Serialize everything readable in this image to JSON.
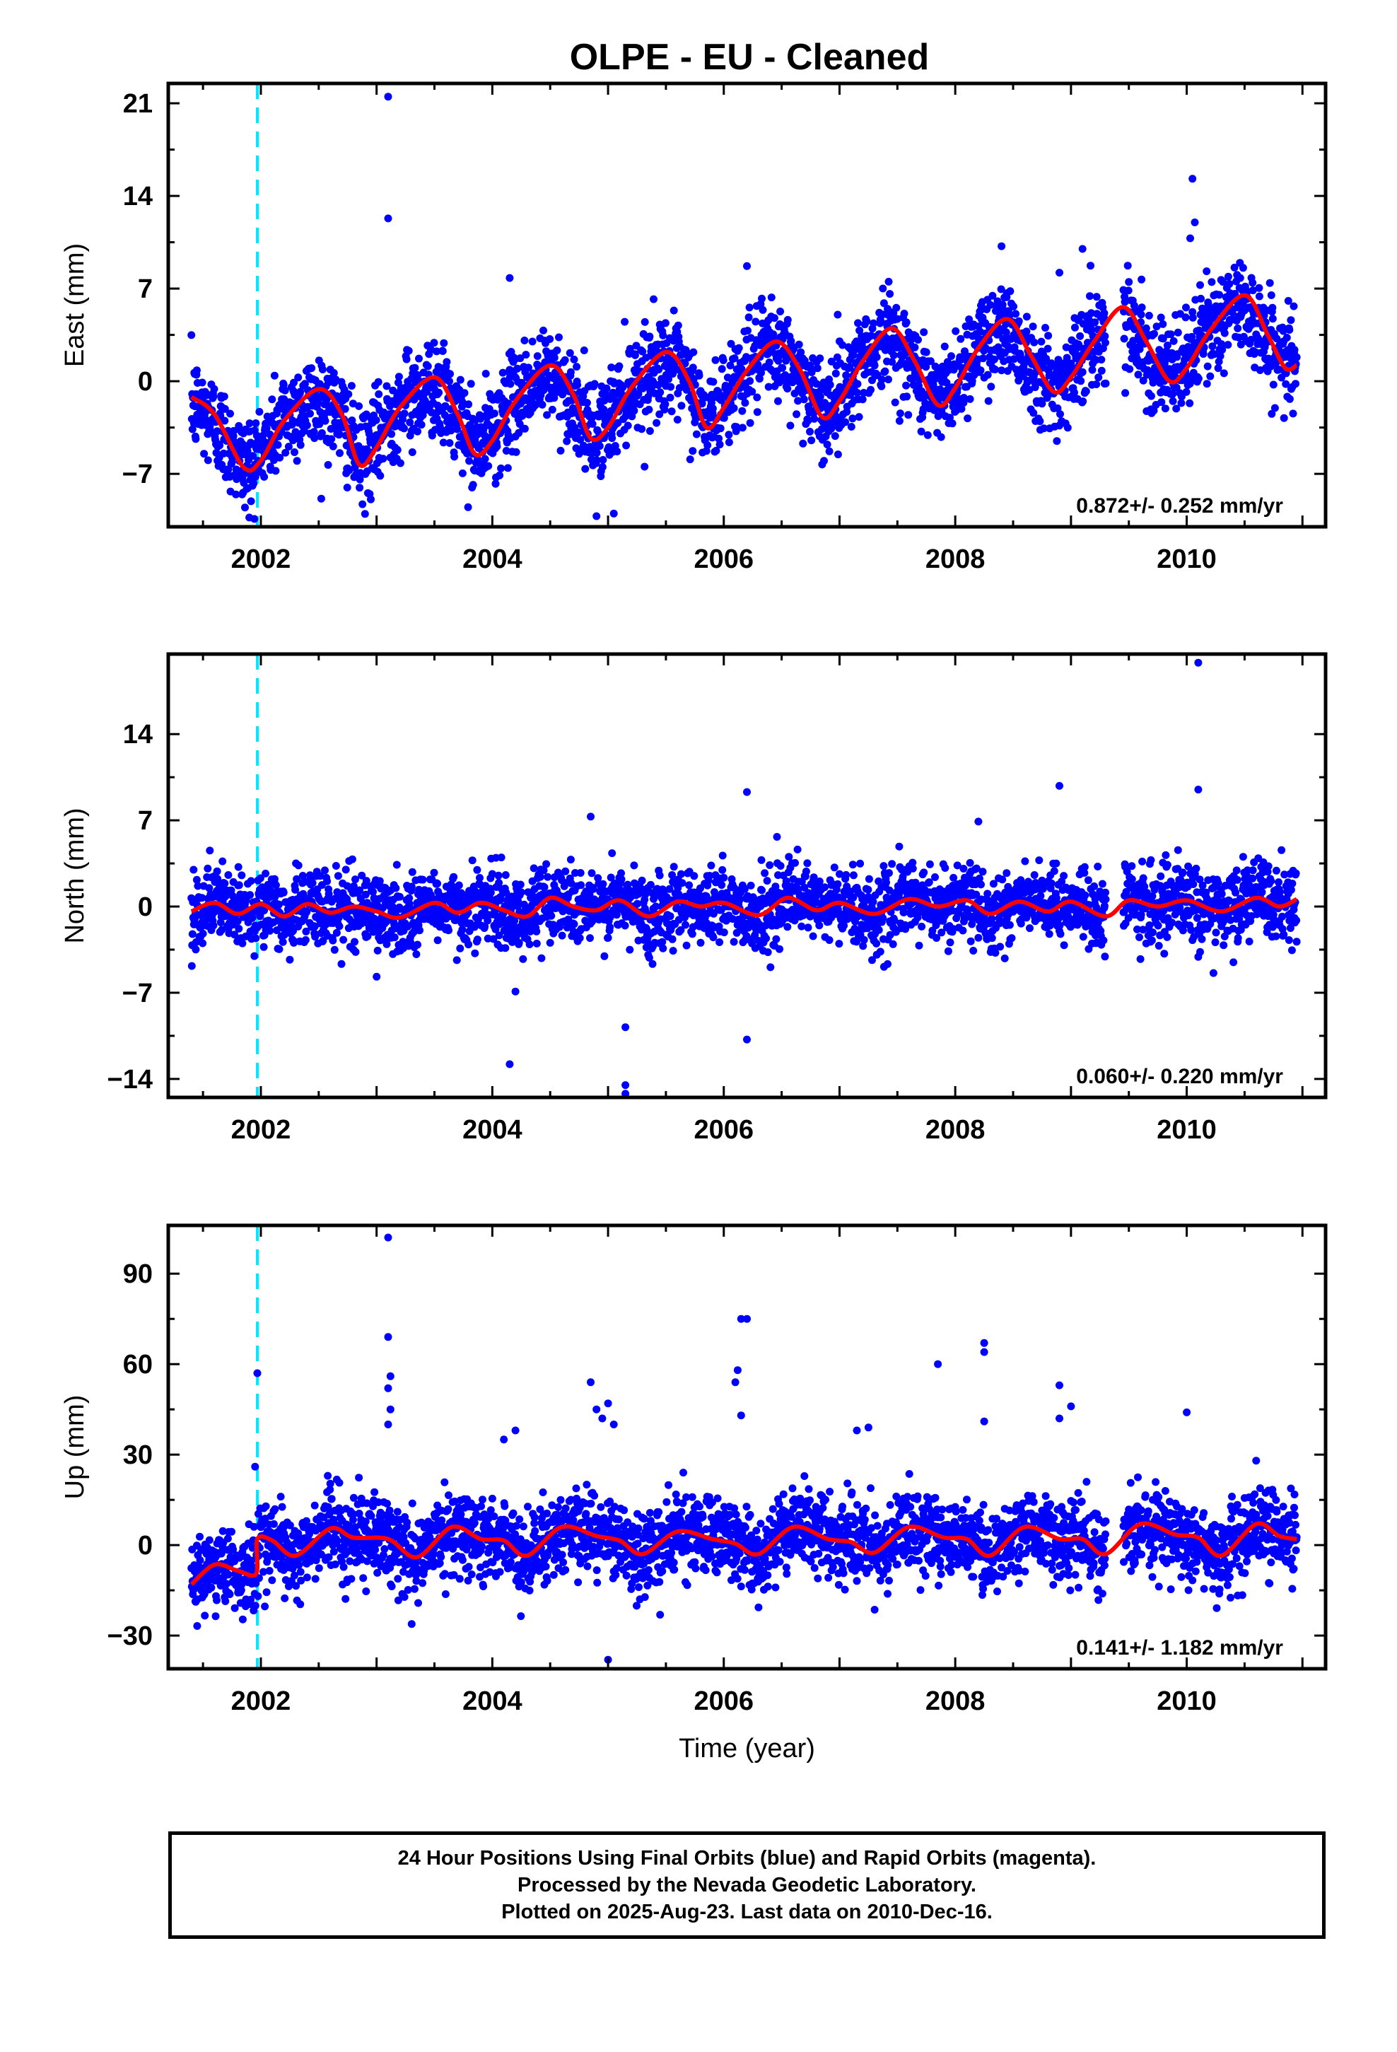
{
  "chart_data": {
    "type": "scatter",
    "title": "OLPE  - EU - Cleaned",
    "x_label": "Time (year)",
    "x_ticks": [
      2002,
      2004,
      2006,
      2008,
      2010
    ],
    "x_range": [
      2001.2,
      2011.2
    ],
    "event_line_x": 2001.97,
    "colors": {
      "final_orbits": "#0000ff",
      "fit": "#ff0000",
      "event_line": "#00e5ff"
    },
    "panels": [
      {
        "name": "East",
        "y_label": "East (mm)",
        "y_range": [
          -11,
          22.5
        ],
        "y_ticks": [
          21,
          14,
          7,
          0,
          -7
        ],
        "y_tick_labels": [
          "21",
          "14",
          "7",
          "0",
          "−7"
        ],
        "rate": "0.872+/- 0.252 mm/yr",
        "rate_mm_yr": 0.872,
        "trend_offset": -2.5,
        "annual_amplitude": 3.5,
        "annual_phase": 0.2,
        "noise": 1.8,
        "outliers": [
          [
            2003.1,
            21.5
          ],
          [
            2003.1,
            12.3
          ],
          [
            2004.15,
            7.8
          ],
          [
            2006.2,
            8.7
          ],
          [
            2008.4,
            10.2
          ],
          [
            2008.9,
            8.2
          ],
          [
            2009.1,
            10.0
          ],
          [
            2010.05,
            15.3
          ],
          [
            2010.07,
            12.0
          ],
          [
            2010.03,
            10.8
          ],
          [
            2001.9,
            -10.3
          ],
          [
            2004.9,
            -10.2
          ],
          [
            2005.05,
            -10.0
          ]
        ],
        "fit_points": [
          [
            2001.4,
            -1.2
          ],
          [
            2001.6,
            -2.5
          ],
          [
            2001.85,
            -6.5
          ],
          [
            2002.0,
            -6.0
          ],
          [
            2002.2,
            -3.0
          ],
          [
            2002.5,
            -0.6
          ],
          [
            2002.7,
            -2.5
          ],
          [
            2002.85,
            -6.3
          ],
          [
            2003.0,
            -5.0
          ],
          [
            2003.2,
            -2.0
          ],
          [
            2003.5,
            0.3
          ],
          [
            2003.7,
            -2.5
          ],
          [
            2003.85,
            -5.5
          ],
          [
            2004.0,
            -4.5
          ],
          [
            2004.2,
            -1.5
          ],
          [
            2004.5,
            1.2
          ],
          [
            2004.7,
            -1.0
          ],
          [
            2004.85,
            -4.3
          ],
          [
            2005.0,
            -3.5
          ],
          [
            2005.2,
            -0.5
          ],
          [
            2005.5,
            2.2
          ],
          [
            2005.7,
            0.0
          ],
          [
            2005.85,
            -3.5
          ],
          [
            2006.0,
            -2.0
          ],
          [
            2006.2,
            0.8
          ],
          [
            2006.45,
            3.0
          ],
          [
            2006.65,
            1.0
          ],
          [
            2006.85,
            -2.7
          ],
          [
            2007.0,
            -1.5
          ],
          [
            2007.2,
            1.5
          ],
          [
            2007.45,
            4.0
          ],
          [
            2007.65,
            1.5
          ],
          [
            2007.85,
            -1.8
          ],
          [
            2008.0,
            -0.5
          ],
          [
            2008.2,
            2.5
          ],
          [
            2008.45,
            4.7
          ],
          [
            2008.65,
            2.0
          ],
          [
            2008.85,
            -0.8
          ],
          [
            2009.0,
            0.3
          ],
          [
            2009.2,
            3.0
          ],
          [
            2009.45,
            5.6
          ],
          [
            2009.65,
            3.0
          ],
          [
            2009.85,
            0.0
          ],
          [
            2010.0,
            1.0
          ],
          [
            2010.2,
            3.8
          ],
          [
            2010.5,
            6.5
          ],
          [
            2010.7,
            3.5
          ],
          [
            2010.85,
            1.0
          ],
          [
            2010.95,
            1.2
          ]
        ]
      },
      {
        "name": "North",
        "y_label": "North (mm)",
        "y_range": [
          -15.5,
          20.5
        ],
        "y_ticks": [
          14,
          7,
          0,
          -7,
          -14
        ],
        "y_tick_labels": [
          "14",
          "7",
          "0",
          "−7",
          "−14"
        ],
        "rate": "0.060+/- 0.220 mm/yr",
        "rate_mm_yr": 0.06,
        "trend_offset": -0.3,
        "annual_amplitude": 0.6,
        "annual_phase": 0.6,
        "noise": 1.5,
        "outliers": [
          [
            2010.1,
            19.8
          ],
          [
            2006.2,
            9.3
          ],
          [
            2008.9,
            9.8
          ],
          [
            2010.1,
            9.5
          ],
          [
            2004.85,
            7.3
          ],
          [
            2008.2,
            6.9
          ],
          [
            2004.15,
            -12.8
          ],
          [
            2005.15,
            -9.8
          ],
          [
            2005.15,
            -14.5
          ],
          [
            2005.15,
            -15.2
          ],
          [
            2006.2,
            -10.8
          ],
          [
            2004.2,
            -6.9
          ],
          [
            2003.0,
            -5.7
          ]
        ],
        "fit_points": [
          [
            2001.4,
            -0.4
          ],
          [
            2001.6,
            0.3
          ],
          [
            2001.8,
            -0.6
          ],
          [
            2002.0,
            0.2
          ],
          [
            2002.2,
            -0.8
          ],
          [
            2002.4,
            0.2
          ],
          [
            2002.6,
            -0.5
          ],
          [
            2002.8,
            0.0
          ],
          [
            2003.0,
            -0.4
          ],
          [
            2003.2,
            -0.9
          ],
          [
            2003.5,
            0.3
          ],
          [
            2003.7,
            -0.5
          ],
          [
            2003.9,
            0.3
          ],
          [
            2004.1,
            -0.3
          ],
          [
            2004.3,
            -0.8
          ],
          [
            2004.5,
            0.7
          ],
          [
            2004.7,
            0.0
          ],
          [
            2004.9,
            -0.3
          ],
          [
            2005.1,
            0.5
          ],
          [
            2005.35,
            -0.8
          ],
          [
            2005.6,
            0.4
          ],
          [
            2005.8,
            0.0
          ],
          [
            2006.0,
            0.3
          ],
          [
            2006.3,
            -0.7
          ],
          [
            2006.55,
            0.7
          ],
          [
            2006.8,
            -0.3
          ],
          [
            2007.0,
            0.3
          ],
          [
            2007.3,
            -0.6
          ],
          [
            2007.6,
            0.6
          ],
          [
            2007.85,
            0.0
          ],
          [
            2008.1,
            0.5
          ],
          [
            2008.3,
            -0.6
          ],
          [
            2008.55,
            0.4
          ],
          [
            2008.8,
            -0.4
          ],
          [
            2009.0,
            0.4
          ],
          [
            2009.3,
            -0.8
          ],
          [
            2009.5,
            0.5
          ],
          [
            2009.75,
            0.0
          ],
          [
            2010.0,
            0.5
          ],
          [
            2010.3,
            -0.4
          ],
          [
            2010.6,
            0.7
          ],
          [
            2010.8,
            0.0
          ],
          [
            2010.95,
            0.6
          ]
        ]
      },
      {
        "name": "Up",
        "y_label": "Up (mm)",
        "y_range": [
          -41,
          106
        ],
        "y_ticks": [
          90,
          60,
          30,
          0,
          -30
        ],
        "y_tick_labels": [
          "90",
          "60",
          "30",
          "0",
          "−30"
        ],
        "rate": "0.141+/- 1.182 mm/yr",
        "rate_mm_yr": 0.141,
        "trend_offset": 0.0,
        "annual_amplitude": 3.0,
        "annual_phase": 0.4,
        "noise": 6.5,
        "outliers": [
          [
            2003.1,
            102
          ],
          [
            2003.1,
            69
          ],
          [
            2003.12,
            56
          ],
          [
            2003.1,
            52
          ],
          [
            2003.12,
            45
          ],
          [
            2003.1,
            40
          ],
          [
            2006.15,
            75
          ],
          [
            2006.2,
            75
          ],
          [
            2006.1,
            54
          ],
          [
            2006.12,
            58
          ],
          [
            2006.15,
            43
          ],
          [
            2008.25,
            67
          ],
          [
            2008.25,
            64
          ],
          [
            2008.25,
            41
          ],
          [
            2007.85,
            60
          ],
          [
            2008.9,
            53
          ],
          [
            2009.0,
            46
          ],
          [
            2008.9,
            42
          ],
          [
            2004.85,
            54
          ],
          [
            2005.0,
            47
          ],
          [
            2004.9,
            45
          ],
          [
            2004.95,
            42
          ],
          [
            2004.2,
            38
          ],
          [
            2010.0,
            44
          ],
          [
            2001.97,
            57
          ],
          [
            2001.95,
            26
          ],
          [
            2005.0,
            -38
          ],
          [
            2004.1,
            35
          ],
          [
            2005.05,
            40
          ],
          [
            2007.25,
            39
          ],
          [
            2007.15,
            38
          ],
          [
            2010.6,
            28
          ]
        ],
        "fit_points": [
          [
            2001.4,
            -13
          ],
          [
            2001.6,
            -6.5
          ],
          [
            2001.8,
            -8.5
          ],
          [
            2001.96,
            -9.5
          ],
          [
            2001.97,
            2
          ],
          [
            2002.1,
            1.5
          ],
          [
            2002.3,
            -3.5
          ],
          [
            2002.6,
            5.5
          ],
          [
            2002.8,
            2.5
          ],
          [
            2003.1,
            2.0
          ],
          [
            2003.35,
            -4.0
          ],
          [
            2003.65,
            6.0
          ],
          [
            2003.9,
            2.0
          ],
          [
            2004.1,
            1.5
          ],
          [
            2004.3,
            -3.5
          ],
          [
            2004.6,
            6.0
          ],
          [
            2004.9,
            3.0
          ],
          [
            2005.1,
            1.5
          ],
          [
            2005.3,
            -3.0
          ],
          [
            2005.6,
            4.5
          ],
          [
            2005.9,
            2.0
          ],
          [
            2006.1,
            0.5
          ],
          [
            2006.3,
            -3.0
          ],
          [
            2006.6,
            6.0
          ],
          [
            2006.9,
            2.0
          ],
          [
            2007.1,
            1.0
          ],
          [
            2007.3,
            -2.5
          ],
          [
            2007.6,
            6.0
          ],
          [
            2007.9,
            2.5
          ],
          [
            2008.1,
            2.0
          ],
          [
            2008.3,
            -3.5
          ],
          [
            2008.6,
            6.0
          ],
          [
            2008.9,
            2.0
          ],
          [
            2009.1,
            2.0
          ],
          [
            2009.3,
            -3.0
          ],
          [
            2009.6,
            7.0
          ],
          [
            2009.9,
            3.5
          ],
          [
            2010.1,
            2.5
          ],
          [
            2010.3,
            -3.5
          ],
          [
            2010.6,
            7.0
          ],
          [
            2010.8,
            3.0
          ],
          [
            2010.95,
            2.0
          ]
        ]
      }
    ],
    "data_span": [
      2001.4,
      2010.95
    ],
    "gaps": [
      [
        2009.3,
        2009.45
      ]
    ]
  },
  "footer": {
    "line1": "24 Hour Positions Using Final Orbits (blue) and Rapid Orbits (magenta).",
    "line2": "Processed by the Nevada Geodetic Laboratory.",
    "line3": "Plotted on 2025-Aug-23. Last data on 2010-Dec-16."
  }
}
